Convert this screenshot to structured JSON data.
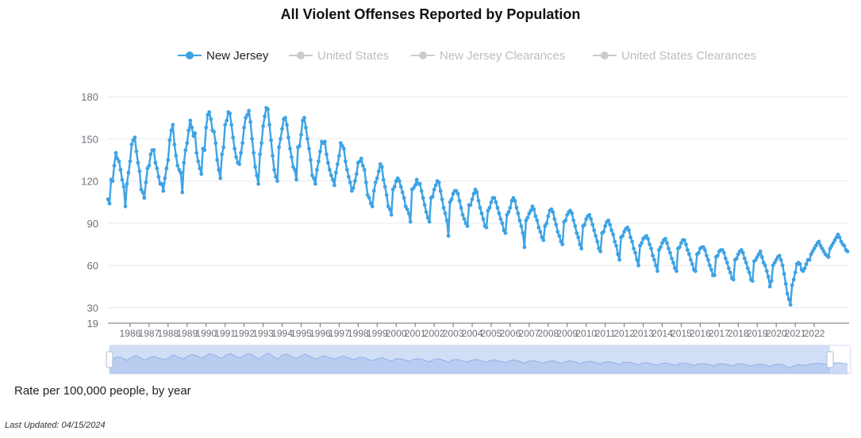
{
  "header": {
    "title": "All Violent Offenses Reported by Population"
  },
  "legend": [
    {
      "label": "New Jersey",
      "active": true,
      "color": "#3ea3e4"
    },
    {
      "label": "United States",
      "active": false,
      "color": "#cccccc"
    },
    {
      "label": "New Jersey Clearances",
      "active": false,
      "color": "#cccccc"
    },
    {
      "label": "United States Clearances",
      "active": false,
      "color": "#cccccc"
    }
  ],
  "footer": {
    "caption": "Rate per 100,000 people, by year",
    "last_updated": "Last Updated: 04/15/2024"
  },
  "colors": {
    "series": "#3ea3e4",
    "grid": "#e6e9f0",
    "axis_text": "#6e7079",
    "zoom_fill": "#c9d9f5"
  },
  "chart_data": {
    "type": "line",
    "title": "All Violent Offenses Reported by Population",
    "ylim": [
      19,
      190
    ],
    "y_ticks": [
      19,
      30,
      60,
      90,
      120,
      150,
      180
    ],
    "x_tick_labels": [
      "1986",
      "1987",
      "1988",
      "1989",
      "1990",
      "1991",
      "1992",
      "1993",
      "1994",
      "1995",
      "1996",
      "1997",
      "1998",
      "1999",
      "2000",
      "2001",
      "2002",
      "2003",
      "2004",
      "2005",
      "2006",
      "2007",
      "2008",
      "2009",
      "2010",
      "2011",
      "2012",
      "2013",
      "2014",
      "2015",
      "2016",
      "2017",
      "2018",
      "2019",
      "2020",
      "2021",
      "2022"
    ],
    "grid": true,
    "legend_position": "top",
    "frequency": "monthly",
    "start": "1985-01",
    "series": [
      {
        "name": "New Jersey",
        "values": [
          107,
          104,
          121,
          120,
          131,
          140,
          136,
          134,
          128,
          121,
          116,
          102,
          118,
          126,
          134,
          146,
          149,
          151,
          141,
          133,
          127,
          114,
          112,
          108,
          119,
          129,
          131,
          139,
          142,
          142,
          133,
          129,
          123,
          118,
          118,
          113,
          122,
          129,
          135,
          149,
          156,
          160,
          146,
          138,
          131,
          128,
          126,
          112,
          133,
          142,
          147,
          156,
          163,
          158,
          152,
          154,
          140,
          134,
          129,
          125,
          143,
          142,
          158,
          167,
          169,
          164,
          156,
          155,
          147,
          135,
          128,
          122,
          139,
          144,
          160,
          163,
          169,
          168,
          160,
          151,
          143,
          137,
          133,
          132,
          140,
          147,
          158,
          165,
          167,
          170,
          162,
          150,
          140,
          130,
          124,
          118,
          139,
          147,
          159,
          166,
          172,
          171,
          160,
          149,
          138,
          128,
          123,
          120,
          144,
          150,
          157,
          164,
          165,
          160,
          151,
          143,
          137,
          130,
          128,
          121,
          144,
          145,
          153,
          163,
          165,
          158,
          150,
          143,
          135,
          124,
          122,
          118,
          128,
          134,
          141,
          148,
          147,
          148,
          139,
          133,
          128,
          124,
          121,
          117,
          126,
          132,
          138,
          147,
          145,
          143,
          134,
          128,
          123,
          119,
          113,
          115,
          120,
          125,
          133,
          134,
          136,
          131,
          128,
          119,
          110,
          108,
          104,
          102,
          113,
          119,
          122,
          127,
          132,
          130,
          121,
          116,
          110,
          102,
          100,
          96,
          114,
          116,
          120,
          122,
          120,
          116,
          112,
          108,
          102,
          100,
          97,
          91,
          114,
          115,
          117,
          121,
          118,
          118,
          113,
          108,
          103,
          98,
          94,
          91,
          108,
          109,
          114,
          117,
          120,
          119,
          113,
          107,
          101,
          97,
          92,
          81,
          105,
          107,
          111,
          113,
          113,
          111,
          106,
          101,
          96,
          93,
          90,
          88,
          103,
          103,
          107,
          111,
          114,
          112,
          106,
          101,
          97,
          93,
          88,
          87,
          99,
          101,
          105,
          108,
          108,
          105,
          101,
          97,
          93,
          90,
          85,
          83,
          96,
          98,
          101,
          106,
          108,
          106,
          101,
          97,
          92,
          88,
          83,
          73,
          92,
          94,
          97,
          99,
          102,
          100,
          95,
          92,
          87,
          84,
          80,
          78,
          88,
          90,
          95,
          99,
          100,
          98,
          93,
          89,
          84,
          81,
          77,
          75,
          91,
          92,
          96,
          98,
          99,
          97,
          92,
          88,
          83,
          80,
          75,
          72,
          88,
          89,
          93,
          95,
          96,
          93,
          89,
          85,
          81,
          77,
          72,
          70,
          83,
          84,
          88,
          91,
          92,
          89,
          85,
          82,
          77,
          74,
          68,
          64,
          80,
          81,
          84,
          86,
          87,
          85,
          80,
          77,
          72,
          69,
          64,
          60,
          74,
          76,
          79,
          80,
          81,
          79,
          75,
          72,
          67,
          64,
          60,
          56,
          71,
          73,
          76,
          78,
          79,
          76,
          72,
          69,
          65,
          62,
          58,
          56,
          72,
          73,
          76,
          78,
          78,
          75,
          71,
          68,
          64,
          61,
          57,
          56,
          68,
          69,
          72,
          73,
          73,
          71,
          67,
          64,
          60,
          57,
          53,
          53,
          66,
          67,
          70,
          71,
          71,
          69,
          65,
          62,
          58,
          55,
          51,
          50,
          64,
          65,
          68,
          70,
          71,
          69,
          65,
          62,
          58,
          55,
          50,
          49,
          63,
          64,
          66,
          68,
          70,
          66,
          62,
          60,
          56,
          52,
          45,
          49,
          60,
          62,
          64,
          66,
          67,
          64,
          60,
          54,
          47,
          40,
          36,
          32,
          46,
          50,
          55,
          61,
          62,
          61,
          57,
          56,
          58,
          61,
          64,
          64,
          68,
          70,
          72,
          74,
          76,
          77,
          74,
          72,
          70,
          68,
          67,
          66,
          72,
          74,
          76,
          78,
          80,
          82,
          80,
          77,
          75,
          74,
          71,
          70
        ]
      },
      {
        "name": "United States",
        "values": []
      },
      {
        "name": "New Jersey Clearances",
        "values": []
      },
      {
        "name": "United States Clearances",
        "values": []
      }
    ]
  }
}
